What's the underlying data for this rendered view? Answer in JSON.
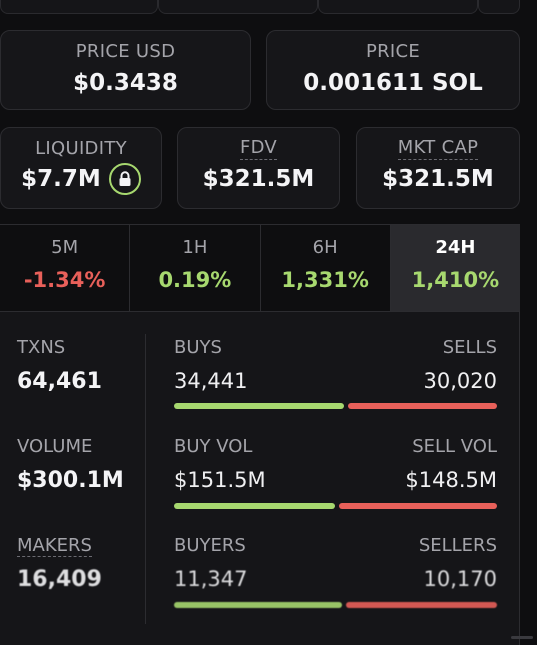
{
  "prices": {
    "usd": {
      "label": "PRICE USD",
      "value": "$0.3438"
    },
    "native": {
      "label": "PRICE",
      "value": "0.001611 SOL"
    }
  },
  "metrics": {
    "liquidity": {
      "label": "LIQUIDITY",
      "value": "$7.7M",
      "icon": "lock-icon"
    },
    "fdv": {
      "label": "FDV",
      "value": "$321.5M"
    },
    "mkt_cap": {
      "label": "MKT CAP",
      "value": "$321.5M"
    }
  },
  "timeframes": [
    {
      "label": "5M",
      "value": "-1.34%",
      "trend": "down"
    },
    {
      "label": "1H",
      "value": "0.19%",
      "trend": "up"
    },
    {
      "label": "6H",
      "value": "1,331%",
      "trend": "up"
    },
    {
      "label": "24H",
      "value": "1,410%",
      "trend": "up",
      "active": true
    }
  ],
  "stats": {
    "txns": {
      "label": "TXNS",
      "value": "64,461"
    },
    "buys": {
      "label": "BUYS",
      "value": "34,441",
      "share": 0.534
    },
    "sells": {
      "label": "SELLS",
      "value": "30,020",
      "share": 0.466
    },
    "volume": {
      "label": "VOLUME",
      "value": "$300.1M"
    },
    "buy_vol": {
      "label": "BUY VOL",
      "value": "$151.5M",
      "share": 0.505
    },
    "sell_vol": {
      "label": "SELL VOL",
      "value": "$148.5M",
      "share": 0.495
    },
    "makers": {
      "label": "MAKERS",
      "value": "16,409"
    },
    "buyers": {
      "label": "BUYERS",
      "value": "11,347",
      "share": 0.527
    },
    "sellers": {
      "label": "SELLERS",
      "value": "10,170",
      "share": 0.473
    }
  },
  "colors": {
    "green": "#a7d86f",
    "red": "#e8605a",
    "background": "#0e0e10"
  }
}
